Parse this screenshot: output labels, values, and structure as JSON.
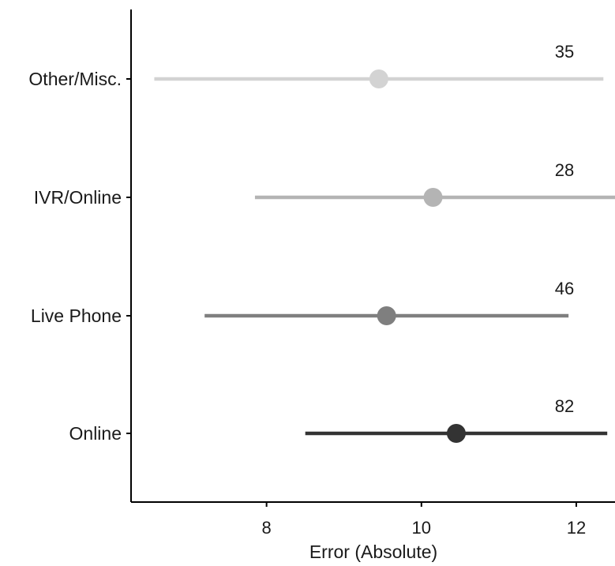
{
  "chart_data": {
    "type": "dot-interval",
    "xlabel": "Error (Absolute)",
    "ylabel": "",
    "xlim": [
      6.25,
      12.5
    ],
    "xticks": [
      8,
      10,
      12
    ],
    "grid": false,
    "categories": [
      "Other/Misc.",
      "IVR/Online",
      "Live Phone",
      "Online"
    ],
    "points": [
      {
        "category": "Other/Misc.",
        "estimate": 9.45,
        "lower": 6.55,
        "upper": 12.35,
        "n": "35",
        "color": "#d3d3d3"
      },
      {
        "category": "IVR/Online",
        "estimate": 10.15,
        "lower": 7.85,
        "upper": 12.5,
        "n": "28",
        "color": "#b4b4b4"
      },
      {
        "category": "Live Phone",
        "estimate": 9.55,
        "lower": 7.2,
        "upper": 11.9,
        "n": "46",
        "color": "#7f7f7f"
      },
      {
        "category": "Online",
        "estimate": 10.45,
        "lower": 8.5,
        "upper": 12.4,
        "n": "82",
        "color": "#333333"
      }
    ]
  }
}
